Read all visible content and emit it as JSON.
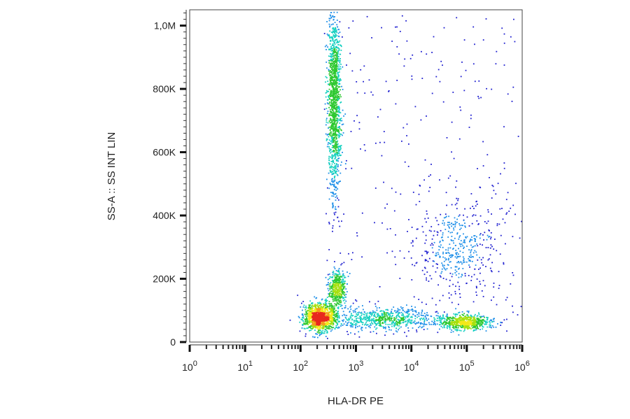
{
  "chart_data": {
    "type": "scatter",
    "subtype": "flow-cytometry density dot plot",
    "xlabel": "HLA-DR PE",
    "ylabel": "SS-A :: SS INT LIN",
    "x_scale": "log",
    "xlim": [
      1,
      1000000
    ],
    "x_ticks": [
      {
        "value": 1,
        "base": "10",
        "exp": "0"
      },
      {
        "value": 10,
        "base": "10",
        "exp": "1"
      },
      {
        "value": 100,
        "base": "10",
        "exp": "2"
      },
      {
        "value": 1000,
        "base": "10",
        "exp": "3"
      },
      {
        "value": 10000,
        "base": "10",
        "exp": "4"
      },
      {
        "value": 100000,
        "base": "10",
        "exp": "5"
      },
      {
        "value": 1000000,
        "base": "10",
        "exp": "6"
      }
    ],
    "y_scale": "linear",
    "ylim": [
      0,
      1050000
    ],
    "y_ticks": [
      {
        "value": 0,
        "label": "0"
      },
      {
        "value": 200000,
        "label": "200K"
      },
      {
        "value": 400000,
        "label": "400K"
      },
      {
        "value": 600000,
        "label": "600K"
      },
      {
        "value": 800000,
        "label": "800K"
      },
      {
        "value": 1000000,
        "label": "1,0M"
      }
    ],
    "grid": false,
    "legend": "none",
    "colormap": [
      "#2020d0",
      "#1e8fe8",
      "#16d0c0",
      "#2ec830",
      "#a6e00e",
      "#f4e81a",
      "#f59a1a",
      "#e8281e"
    ],
    "populations": [
      {
        "log_x": 2.35,
        "sd_log_x": 0.14,
        "y": 80000,
        "sd_y": 22000,
        "density": "high"
      },
      {
        "log_x": 2.6,
        "sd_log_x": 0.06,
        "y": 760000,
        "sd_y": 150000,
        "density": "high"
      },
      {
        "log_x": 3.5,
        "sd_log_x": 0.5,
        "y": 75000,
        "sd_y": 18000,
        "density": "medium"
      },
      {
        "log_x": 4.95,
        "sd_log_x": 0.25,
        "y": 65000,
        "sd_y": 12000,
        "density": "medium"
      },
      {
        "log_x": 4.8,
        "sd_log_x": 0.4,
        "y": 300000,
        "sd_y": 70000,
        "density": "low"
      },
      {
        "log_x": 2.65,
        "sd_log_x": 0.08,
        "y": 170000,
        "sd_y": 30000,
        "density": "low"
      }
    ]
  }
}
